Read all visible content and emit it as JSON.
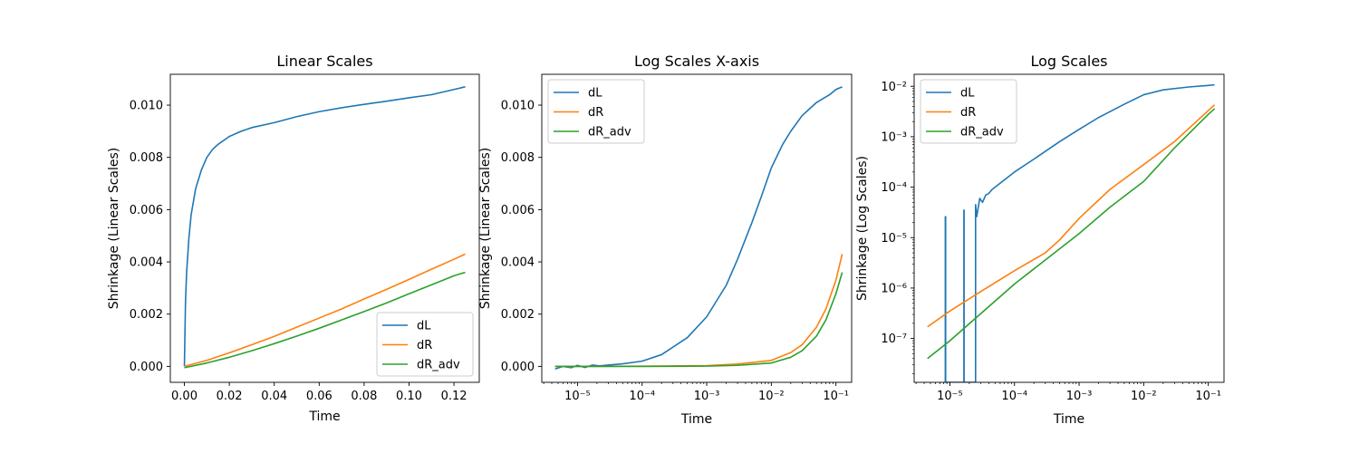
{
  "chart_data": [
    {
      "type": "line",
      "title": "Linear Scales",
      "xlabel": "Time",
      "ylabel": "Shrinkage (Linear Scales)",
      "xscale": "linear",
      "yscale": "linear",
      "xlim": [
        -0.00626,
        0.13126
      ],
      "ylim": [
        -0.00061,
        0.01118
      ],
      "xticks": [
        0.0,
        0.02,
        0.04,
        0.06,
        0.08,
        0.1,
        0.12
      ],
      "xtick_labels": [
        "0.00",
        "0.02",
        "0.04",
        "0.06",
        "0.08",
        "0.10",
        "0.12"
      ],
      "yticks": [
        0.0,
        0.002,
        0.004,
        0.006,
        0.008,
        0.01
      ],
      "ytick_labels": [
        "0.000",
        "0.002",
        "0.004",
        "0.006",
        "0.008",
        "0.010"
      ],
      "legend": "lower-right",
      "grid": false,
      "series": [
        {
          "name": "dL",
          "color": "#1f77b4",
          "x": [
            0,
            0.0005,
            0.001,
            0.002,
            0.003,
            0.005,
            0.0075,
            0.01,
            0.0125,
            0.015,
            0.02,
            0.025,
            0.03,
            0.04,
            0.05,
            0.06,
            0.07,
            0.08,
            0.09,
            0.1,
            0.11,
            0.12,
            0.125
          ],
          "y": [
            0,
            0.0025,
            0.0036,
            0.0049,
            0.0058,
            0.0068,
            0.0075,
            0.008,
            0.0083,
            0.0085,
            0.0088,
            0.00899,
            0.00914,
            0.00933,
            0.00956,
            0.00975,
            0.0099,
            0.01003,
            0.01015,
            0.01028,
            0.0104,
            0.0106,
            0.0107
          ]
        },
        {
          "name": "dR",
          "color": "#ff7f0e",
          "x": [
            0,
            0.01,
            0.02,
            0.03,
            0.04,
            0.05,
            0.06,
            0.07,
            0.08,
            0.09,
            0.1,
            0.11,
            0.12,
            0.125
          ],
          "y": [
            0,
            0.00023,
            0.00052,
            0.00083,
            0.00115,
            0.0015,
            0.00185,
            0.0022,
            0.00258,
            0.00295,
            0.00333,
            0.00372,
            0.0041,
            0.0043
          ]
        },
        {
          "name": "dR_adv",
          "color": "#2ca02c",
          "x": [
            0,
            0.01,
            0.02,
            0.03,
            0.04,
            0.05,
            0.06,
            0.07,
            0.08,
            0.09,
            0.1,
            0.11,
            0.12,
            0.125
          ],
          "y": [
            -5e-05,
            0.00013,
            0.00035,
            0.0006,
            0.00087,
            0.00116,
            0.00146,
            0.00178,
            0.0021,
            0.00243,
            0.00278,
            0.00312,
            0.00347,
            0.0036
          ]
        }
      ]
    },
    {
      "type": "line",
      "title": "Log Scales X-axis",
      "xlabel": "Time",
      "ylabel": "Shrinkage (Linear Scales)",
      "xscale": "log",
      "yscale": "linear",
      "xlim": [
        2.8e-06,
        0.175
      ],
      "ylim": [
        -0.00061,
        0.01118
      ],
      "xticks": [
        1e-05,
        0.0001,
        0.001,
        0.01,
        0.1
      ],
      "xtick_labels": [
        "10⁻⁵",
        "10⁻⁴",
        "10⁻³",
        "10⁻²",
        "10⁻¹"
      ],
      "yticks": [
        0.0,
        0.002,
        0.004,
        0.006,
        0.008,
        0.01
      ],
      "ytick_labels": [
        "0.000",
        "0.002",
        "0.004",
        "0.006",
        "0.008",
        "0.010"
      ],
      "legend": "upper-left",
      "grid": false,
      "series": [
        {
          "name": "dL",
          "color": "#1f77b4",
          "x": [
            4.5e-06,
            6e-06,
            8e-06,
            1e-05,
            1.3e-05,
            1.7e-05,
            2.2e-05,
            3e-05,
            5e-05,
            0.0001,
            0.0002,
            0.0005,
            0.001,
            0.002,
            0.003,
            0.005,
            0.007,
            0.01,
            0.015,
            0.02,
            0.03,
            0.05,
            0.08,
            0.1,
            0.125
          ],
          "y": [
            -0.0001,
            0.0,
            -5e-05,
            4e-05,
            -4e-05,
            5e-05,
            2e-05,
            5e-05,
            0.0001,
            0.0002,
            0.00045,
            0.0011,
            0.0019,
            0.0031,
            0.0041,
            0.0055,
            0.0065,
            0.0076,
            0.0085,
            0.009,
            0.0096,
            0.0101,
            0.0104,
            0.0106,
            0.0107
          ]
        },
        {
          "name": "dR",
          "color": "#ff7f0e",
          "x": [
            4.5e-06,
            1e-05,
            0.0001,
            0.001,
            0.003,
            0.01,
            0.02,
            0.03,
            0.05,
            0.07,
            0.1,
            0.125
          ],
          "y": [
            0.0,
            0.0,
            1e-05,
            3e-05,
            9e-05,
            0.00023,
            0.00053,
            0.00083,
            0.0015,
            0.0022,
            0.0033,
            0.0043
          ]
        },
        {
          "name": "dR_adv",
          "color": "#2ca02c",
          "x": [
            4.5e-06,
            1e-05,
            0.0001,
            0.001,
            0.003,
            0.01,
            0.02,
            0.03,
            0.05,
            0.07,
            0.1,
            0.125
          ],
          "y": [
            0.0,
            0.0,
            0.0,
            1e-05,
            4e-05,
            0.00013,
            0.00035,
            0.0006,
            0.00116,
            0.00178,
            0.00278,
            0.0036
          ]
        }
      ]
    },
    {
      "type": "line",
      "title": "Log Scales",
      "xlabel": "Time",
      "ylabel": "Shrinkage (Log Scales)",
      "xscale": "log",
      "yscale": "log",
      "xlim": [
        2.8e-06,
        0.175
      ],
      "ylim": [
        1.35e-08,
        0.0173
      ],
      "xticks": [
        1e-05,
        0.0001,
        0.001,
        0.01,
        0.1
      ],
      "xtick_labels": [
        "10⁻⁵",
        "10⁻⁴",
        "10⁻³",
        "10⁻²",
        "10⁻¹"
      ],
      "yticks": [
        1e-07,
        1e-06,
        1e-05,
        0.0001,
        0.001,
        0.01
      ],
      "ytick_labels": [
        "10⁻⁷",
        "10⁻⁶",
        "10⁻⁵",
        "10⁻⁴",
        "10⁻³",
        "10⁻²"
      ],
      "legend": "upper-left",
      "grid": false,
      "series": [
        {
          "name": "dL",
          "color": "#1f77b4",
          "x": [
            8.5e-06,
            8.5e-06,
            8.6e-06,
            8.6e-06,
            1.65e-05,
            1.65e-05,
            1.66e-05,
            1.66e-05,
            2.5e-05,
            2.5e-05,
            2.6e-05,
            2.9e-05,
            3.2e-05,
            3.6e-05,
            4e-05,
            4.5e-05,
            5e-05,
            7e-05,
            0.0001,
            0.0002,
            0.0005,
            0.001,
            0.002,
            0.005,
            0.01,
            0.02,
            0.05,
            0.1,
            0.125
          ],
          "y": [
            1.35e-08,
            2.6e-05,
            2.6e-05,
            1.35e-08,
            1.35e-08,
            3.5e-05,
            3.5e-05,
            1.35e-08,
            1.35e-08,
            4.5e-05,
            2.6e-05,
            6e-05,
            5e-05,
            7e-05,
            7.5e-05,
            9e-05,
            0.0001,
            0.00014,
            0.0002,
            0.00036,
            0.0008,
            0.0014,
            0.0024,
            0.0044,
            0.0068,
            0.0085,
            0.0097,
            0.0104,
            0.0107
          ]
        },
        {
          "name": "dR",
          "color": "#ff7f0e",
          "x": [
            4.5e-06,
            1e-05,
            3e-05,
            0.0001,
            0.0003,
            0.0005,
            0.001,
            0.003,
            0.01,
            0.03,
            0.1,
            0.125
          ],
          "y": [
            1.7e-07,
            3.5e-07,
            8.5e-07,
            2.2e-06,
            5e-06,
            9e-06,
            2.4e-05,
            9e-05,
            0.00028,
            0.0008,
            0.0033,
            0.0043
          ]
        },
        {
          "name": "dR_adv",
          "color": "#2ca02c",
          "x": [
            4.5e-06,
            1e-05,
            0.0001,
            0.001,
            0.003,
            0.01,
            0.03,
            0.1,
            0.125
          ],
          "y": [
            4e-08,
            9e-08,
            1.2e-06,
            1.2e-05,
            4e-05,
            0.00013,
            0.0006,
            0.00278,
            0.0036
          ]
        }
      ]
    }
  ]
}
